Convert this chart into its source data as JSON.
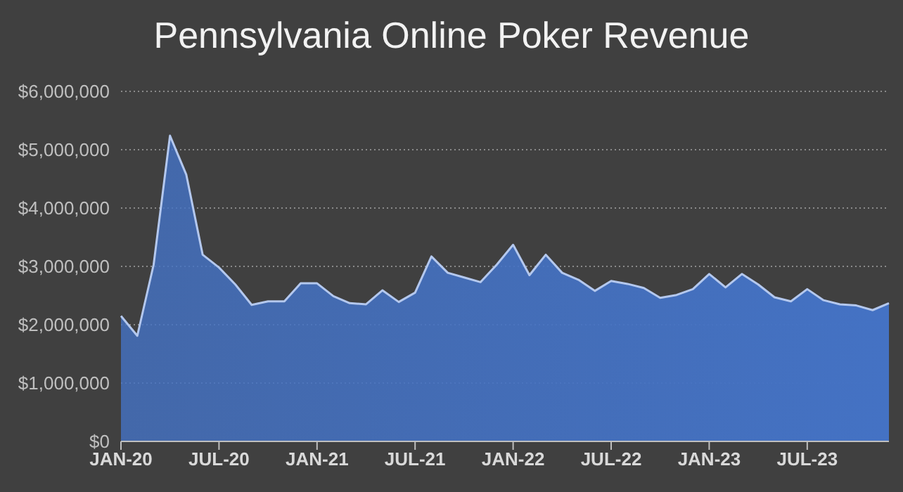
{
  "chart_data": {
    "type": "area",
    "title": "Pennsylvania Online Poker Revenue",
    "categories": [
      "JAN-20",
      null,
      null,
      null,
      null,
      null,
      "JUL-20",
      null,
      null,
      null,
      null,
      null,
      "JAN-21",
      null,
      null,
      null,
      null,
      null,
      "JUL-21",
      null,
      null,
      null,
      null,
      null,
      "JAN-22",
      null,
      null,
      null,
      null,
      null,
      "JUL-22",
      null,
      null,
      null,
      null,
      null,
      "JAN-23",
      null,
      null,
      null,
      null,
      null,
      "JUL-23",
      null,
      null,
      null,
      null,
      null
    ],
    "series": [
      {
        "color": "#4472c4",
        "values": [
          2150000,
          1810000,
          3030000,
          5240000,
          4570000,
          3200000,
          2980000,
          2690000,
          2340000,
          2400000,
          2400000,
          2710000,
          2710000,
          2490000,
          2370000,
          2350000,
          2590000,
          2390000,
          2550000,
          3170000,
          2890000,
          2810000,
          2730000,
          3030000,
          3370000,
          2850000,
          3200000,
          2890000,
          2770000,
          2580000,
          2750000,
          2700000,
          2630000,
          2460000,
          2510000,
          2610000,
          2870000,
          2640000,
          2870000,
          2690000,
          2470000,
          2400000,
          2610000,
          2420000,
          2350000,
          2330000,
          2250000,
          2370000
        ]
      }
    ],
    "ylim": [
      0,
      6000000
    ],
    "yticks": [
      {
        "value": 0,
        "label": "$0"
      },
      {
        "value": 1000000,
        "label": "$1,000,000"
      },
      {
        "value": 2000000,
        "label": "$2,000,000"
      },
      {
        "value": 3000000,
        "label": "$3,000,000"
      },
      {
        "value": 4000000,
        "label": "$4,000,000"
      },
      {
        "value": 5000000,
        "label": "$5,000,000"
      },
      {
        "value": 6000000,
        "label": "$6,000,000"
      }
    ],
    "grid": "y",
    "legend": false
  }
}
